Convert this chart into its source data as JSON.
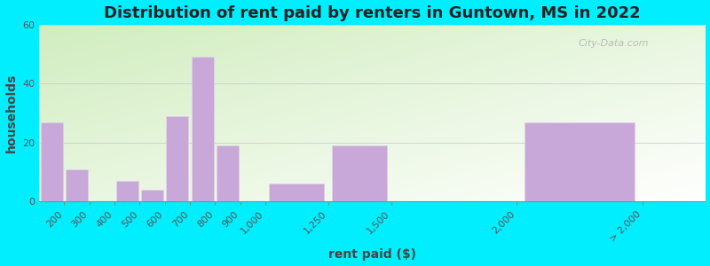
{
  "title": "Distribution of rent paid by renters in Guntown, MS in 2022",
  "xlabel": "rent paid ($)",
  "ylabel": "households",
  "bar_labels": [
    "200",
    "300",
    "400",
    "500",
    "600",
    "700",
    "800",
    "900",
    "1,000",
    "1,250",
    "1,500",
    "2,000",
    "> 2,000"
  ],
  "bar_values": [
    27,
    11,
    0,
    7,
    4,
    29,
    49,
    19,
    0,
    6,
    19,
    0,
    27
  ],
  "bar_color": "#c8a8d8",
  "bar_edge_color": "#e0d0e8",
  "ylim": [
    0,
    60
  ],
  "yticks": [
    0,
    20,
    40,
    60
  ],
  "bg_outer": "#00eeff",
  "title_fontsize": 13,
  "axis_label_fontsize": 10,
  "tick_fontsize": 8,
  "watermark_text": "City-Data.com",
  "x_positions": [
    100,
    200,
    300,
    400,
    500,
    600,
    700,
    800,
    900,
    1000,
    1250,
    1500,
    2000
  ],
  "bar_widths": [
    100,
    100,
    100,
    100,
    100,
    100,
    100,
    100,
    100,
    250,
    250,
    500,
    500
  ],
  "xtick_positions": [
    200,
    300,
    400,
    500,
    600,
    700,
    800,
    900,
    1000,
    1250,
    1500,
    2000,
    2500
  ],
  "xlim": [
    100,
    2750
  ]
}
